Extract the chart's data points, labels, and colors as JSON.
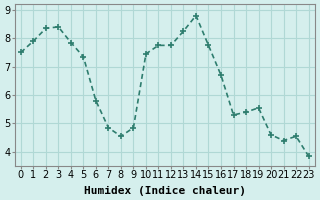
{
  "x": [
    0,
    1,
    2,
    3,
    4,
    5,
    6,
    7,
    8,
    9,
    10,
    11,
    12,
    13,
    14,
    15,
    16,
    17,
    18,
    19,
    20,
    21,
    22,
    23
  ],
  "y": [
    7.5,
    7.9,
    8.35,
    8.4,
    7.85,
    7.35,
    5.8,
    4.85,
    4.55,
    4.85,
    7.45,
    7.75,
    7.75,
    8.25,
    8.8,
    7.75,
    6.7,
    5.3,
    5.4,
    5.55,
    4.6,
    4.4,
    4.55,
    3.85
  ],
  "line_color": "#2e7d6e",
  "marker": "+",
  "marker_size": 5,
  "bg_color": "#d5efed",
  "grid_color": "#b0d8d5",
  "xlabel": "Humidex (Indice chaleur)",
  "ylabel": "",
  "title": "",
  "xlim": [
    -0.5,
    23.5
  ],
  "ylim": [
    3.5,
    9.2
  ],
  "yticks": [
    4,
    5,
    6,
    7,
    8,
    9
  ],
  "xticks": [
    0,
    1,
    2,
    3,
    4,
    5,
    6,
    7,
    8,
    9,
    10,
    11,
    12,
    13,
    14,
    15,
    16,
    17,
    18,
    19,
    20,
    21,
    22,
    23
  ],
  "xlabel_fontsize": 8,
  "tick_fontsize": 7,
  "linewidth": 1.2
}
